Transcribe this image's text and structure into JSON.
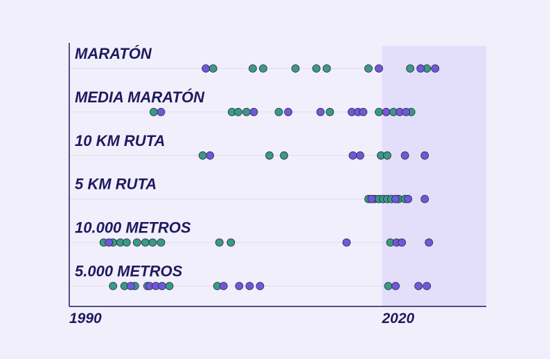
{
  "chart_data": {
    "type": "strip",
    "xlim": [
      1990,
      2030
    ],
    "xticks": [
      1990,
      2020
    ],
    "highlight": [
      2020,
      2030
    ],
    "rows": [
      {
        "label": "MARATÓN",
        "series": [
          {
            "color": "#3a9a83",
            "values": [
              2003.8,
              2007.6,
              2008.6,
              2011.7,
              2013.7,
              2014.7,
              2018.7,
              2022.7,
              2024.3
            ]
          },
          {
            "color": "#7157d9",
            "values": [
              2003.1,
              2019.7,
              2023.7,
              2025.1
            ]
          }
        ]
      },
      {
        "label": "MEDIA MARATÓN",
        "series": [
          {
            "color": "#3a9a83",
            "values": [
              1998.1,
              2005.6,
              2006.2,
              2007.0,
              2010.1,
              2015.0,
              2019.7,
              2021.1,
              2022.8
            ]
          },
          {
            "color": "#7157d9",
            "values": [
              1998.8,
              2007.7,
              2011.0,
              2014.1,
              2017.1,
              2017.7,
              2018.2,
              2020.4,
              2021.7,
              2022.3
            ]
          }
        ]
      },
      {
        "label": "10 KM RUTA",
        "series": [
          {
            "color": "#3a9a83",
            "values": [
              2002.8,
              2009.2,
              2010.6,
              2019.9,
              2020.5
            ]
          },
          {
            "color": "#7157d9",
            "values": [
              2003.5,
              2017.2,
              2017.9,
              2022.2,
              2024.1
            ]
          }
        ]
      },
      {
        "label": "5 KM RUTA",
        "series": [
          {
            "color": "#3a9a83",
            "values": [
              2018.7,
              2019.3,
              2019.7,
              2020.1,
              2020.5,
              2020.9,
              2021.6,
              2022.2
            ]
          },
          {
            "color": "#7157d9",
            "values": [
              2019.0,
              2021.3,
              2022.5,
              2024.1
            ]
          }
        ]
      },
      {
        "label": "10.000 METROS",
        "series": [
          {
            "color": "#3a9a83",
            "values": [
              1993.3,
              1994.2,
              1994.9,
              1995.5,
              1996.5,
              1997.3,
              1998.0,
              1998.8,
              2004.4,
              2005.5,
              2020.8
            ]
          },
          {
            "color": "#7157d9",
            "values": [
              1993.8,
              2016.6,
              2021.4,
              2021.9,
              2024.5
            ]
          }
        ]
      },
      {
        "label": "5.000 METROS",
        "series": [
          {
            "color": "#3a9a83",
            "values": [
              1994.2,
              1995.3,
              1996.3,
              1997.5,
              1999.6,
              2004.2,
              2020.6
            ]
          },
          {
            "color": "#7157d9",
            "values": [
              1995.9,
              1997.7,
              1998.3,
              1998.9,
              2004.8,
              2006.3,
              2007.3,
              2008.3,
              2021.3,
              2023.5,
              2024.3
            ]
          }
        ]
      }
    ]
  }
}
